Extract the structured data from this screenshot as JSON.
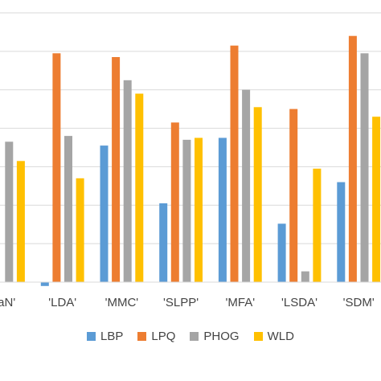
{
  "chart_data": {
    "type": "bar",
    "categories": [
      "..aN'",
      "'LDA'",
      "'MMC'",
      "'SLPP'",
      "'MFA'",
      "'LSDA'",
      "'SDM'"
    ],
    "series": [
      {
        "name": "LBP",
        "color": "#5B9BD5",
        "values": [
          0.0,
          -0.1,
          3.55,
          2.05,
          3.75,
          1.52,
          2.6
        ]
      },
      {
        "name": "LPQ",
        "color": "#ED7D31",
        "values": [
          0.0,
          5.95,
          5.85,
          4.15,
          6.15,
          4.5,
          6.4
        ]
      },
      {
        "name": "PHOG",
        "color": "#A5A5A5",
        "values": [
          3.65,
          3.8,
          5.25,
          3.7,
          5.0,
          0.28,
          5.95
        ]
      },
      {
        "name": "WLD",
        "color": "#FFC000",
        "values": [
          3.15,
          2.7,
          4.9,
          3.75,
          4.55,
          2.95,
          4.3
        ]
      }
    ],
    "ylim": [
      0,
      7
    ],
    "grid": true,
    "legend_position": "bottom"
  }
}
